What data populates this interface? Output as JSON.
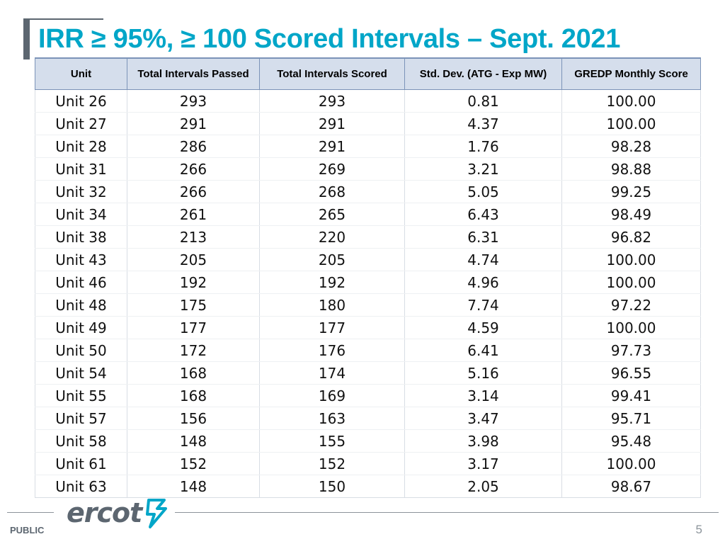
{
  "slide": {
    "title": "IRR ≥ 95%, ≥ 100 Scored Intervals – Sept. 2021",
    "page_number": "5",
    "classification": "PUBLIC",
    "logo_text": "ercot"
  },
  "table": {
    "headers": [
      "Unit",
      "Total Intervals Passed",
      "Total Intervals Scored",
      "Std. Dev. (ATG - Exp MW)",
      "GREDP Monthly Score"
    ],
    "rows": [
      [
        "Unit 26",
        "293",
        "293",
        "0.81",
        "100.00"
      ],
      [
        "Unit 27",
        "291",
        "291",
        "4.37",
        "100.00"
      ],
      [
        "Unit 28",
        "286",
        "291",
        "1.76",
        "98.28"
      ],
      [
        "Unit 31",
        "266",
        "269",
        "3.21",
        "98.88"
      ],
      [
        "Unit 32",
        "266",
        "268",
        "5.05",
        "99.25"
      ],
      [
        "Unit 34",
        "261",
        "265",
        "6.43",
        "98.49"
      ],
      [
        "Unit 38",
        "213",
        "220",
        "6.31",
        "96.82"
      ],
      [
        "Unit 43",
        "205",
        "205",
        "4.74",
        "100.00"
      ],
      [
        "Unit 46",
        "192",
        "192",
        "4.96",
        "100.00"
      ],
      [
        "Unit 48",
        "175",
        "180",
        "7.74",
        "97.22"
      ],
      [
        "Unit 49",
        "177",
        "177",
        "4.59",
        "100.00"
      ],
      [
        "Unit 50",
        "172",
        "176",
        "6.41",
        "97.73"
      ],
      [
        "Unit 54",
        "168",
        "174",
        "5.16",
        "96.55"
      ],
      [
        "Unit 55",
        "168",
        "169",
        "3.14",
        "99.41"
      ],
      [
        "Unit 57",
        "156",
        "163",
        "3.47",
        "95.71"
      ],
      [
        "Unit 58",
        "148",
        "155",
        "3.98",
        "95.48"
      ],
      [
        "Unit 61",
        "152",
        "152",
        "3.17",
        "100.00"
      ],
      [
        "Unit 63",
        "148",
        "150",
        "2.05",
        "98.67"
      ]
    ]
  },
  "colors": {
    "title": "#00a6c8",
    "header_fill": "#d5deec",
    "logo_gray": "#5c6670",
    "logo_accent": "#00a6c8"
  }
}
